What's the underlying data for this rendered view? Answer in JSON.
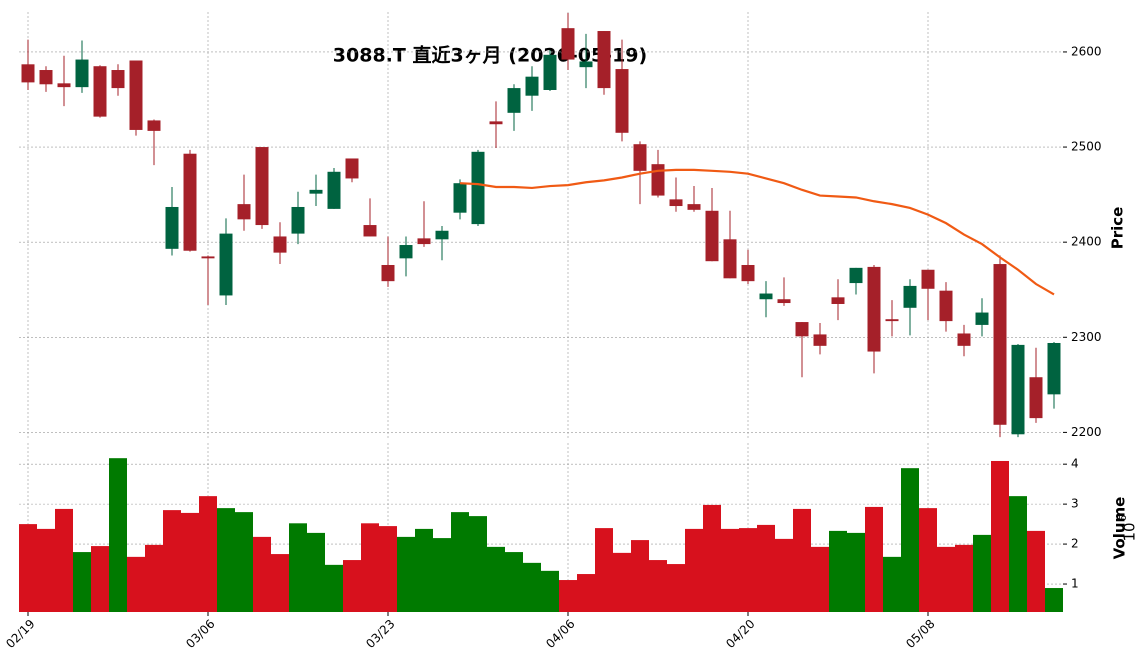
{
  "chart_data": [
    {
      "type": "candlestick",
      "title": "3088.T 直近3ヶ月 (2026-05-19)",
      "ylabel": "Price",
      "categories": [
        "02/19",
        null,
        null,
        null,
        null,
        null,
        null,
        null,
        null,
        null,
        "03/06",
        null,
        null,
        null,
        null,
        null,
        null,
        null,
        null,
        null,
        "03/23",
        null,
        null,
        null,
        null,
        null,
        null,
        null,
        null,
        null,
        "04/06",
        null,
        null,
        null,
        null,
        null,
        null,
        null,
        null,
        null,
        "04/20",
        null,
        null,
        null,
        null,
        null,
        null,
        null,
        null,
        null,
        "05/08",
        null,
        null,
        null,
        null,
        null,
        null,
        null
      ],
      "open": [
        2587,
        2581,
        2567,
        2563,
        2585,
        2581,
        2591,
        2528,
        2393,
        2493,
        2385,
        2344,
        2440,
        2500,
        2406,
        2409,
        2451,
        2435,
        2488,
        2418,
        2376,
        2383,
        2404,
        2403,
        2431,
        2419,
        2527,
        2536,
        2554,
        2560,
        2625,
        2584,
        2622,
        2582,
        2503,
        2482,
        2445,
        2440,
        2433,
        2403,
        2376,
        2340,
        2340,
        2316,
        2303,
        2342,
        2357,
        2374,
        2319,
        2331,
        2371,
        2349,
        2304,
        2313,
        2377,
        2198,
        2258,
        2240
      ],
      "high": [
        2613,
        2585,
        2596,
        2612,
        2586,
        2587,
        2591,
        2529,
        2458,
        2497,
        2386,
        2425,
        2471,
        2500,
        2421,
        2453,
        2471,
        2478,
        2488,
        2446,
        2406,
        2406,
        2443,
        2417,
        2466,
        2497,
        2548,
        2566,
        2585,
        2602,
        2641,
        2619,
        2622,
        2613,
        2506,
        2497,
        2468,
        2459,
        2457,
        2433,
        2392,
        2359,
        2363,
        2316,
        2315,
        2361,
        2373,
        2376,
        2339,
        2361,
        2371,
        2358,
        2313,
        2341,
        2386,
        2293,
        2289,
        2295
      ],
      "low": [
        2560,
        2558,
        2543,
        2557,
        2531,
        2554,
        2512,
        2481,
        2386,
        2390,
        2334,
        2334,
        2412,
        2414,
        2377,
        2398,
        2438,
        2435,
        2463,
        2406,
        2353,
        2364,
        2395,
        2381,
        2424,
        2417,
        2499,
        2517,
        2538,
        2559,
        2581,
        2562,
        2555,
        2506,
        2440,
        2447,
        2432,
        2432,
        2380,
        2362,
        2356,
        2321,
        2333,
        2258,
        2282,
        2318,
        2345,
        2262,
        2301,
        2302,
        2318,
        2306,
        2280,
        2301,
        2195,
        2195,
        2210,
        2225
      ],
      "close": [
        2568,
        2566,
        2563,
        2592,
        2532,
        2562,
        2518,
        2517,
        2437,
        2391,
        2383,
        2409,
        2424,
        2418,
        2389,
        2437,
        2455,
        2474,
        2467,
        2406,
        2359,
        2397,
        2398,
        2412,
        2462,
        2495,
        2524,
        2562,
        2574,
        2597,
        2592,
        2590,
        2562,
        2515,
        2475,
        2449,
        2438,
        2434,
        2380,
        2362,
        2359,
        2346,
        2336,
        2301,
        2291,
        2335,
        2373,
        2285,
        2317,
        2354,
        2351,
        2317,
        2291,
        2326,
        2208,
        2292,
        2215,
        2294
      ],
      "up_color": "#006340",
      "down_color": "#a52029",
      "overlay": {
        "type": "line",
        "color": "#f05a14",
        "values": [
          null,
          null,
          null,
          null,
          null,
          null,
          null,
          null,
          null,
          null,
          null,
          null,
          null,
          null,
          null,
          null,
          null,
          null,
          null,
          null,
          null,
          null,
          null,
          null,
          2462,
          2461,
          2458,
          2458,
          2457,
          2459,
          2460,
          2463,
          2465,
          2468,
          2472,
          2475,
          2476,
          2476,
          2475,
          2474,
          2472,
          2467,
          2462,
          2455,
          2449,
          2448,
          2447,
          2443,
          2440,
          2436,
          2429,
          2420,
          2408,
          2398,
          2384,
          2371,
          2356,
          2345
        ]
      },
      "ylim": [
        2192,
        2642
      ],
      "yticks": [
        2200,
        2300,
        2400,
        2500,
        2600
      ],
      "grid": true
    },
    {
      "type": "bar",
      "ylabel": "Volume",
      "offset_base": "10",
      "offset_exponent": "6",
      "values": [
        2.5,
        2.38,
        2.88,
        1.8,
        1.95,
        4.15,
        1.68,
        1.98,
        2.85,
        2.78,
        3.2,
        2.9,
        2.8,
        2.18,
        1.75,
        2.52,
        2.28,
        1.48,
        1.6,
        2.52,
        2.45,
        2.18,
        2.38,
        2.15,
        2.8,
        2.7,
        1.93,
        1.8,
        1.53,
        1.33,
        1.1,
        1.25,
        2.4,
        1.78,
        2.1,
        1.6,
        1.5,
        2.38,
        2.98,
        2.38,
        2.4,
        2.48,
        2.13,
        2.88,
        1.93,
        2.33,
        2.28,
        2.93,
        1.68,
        3.9,
        2.9,
        1.93,
        1.98,
        2.23,
        4.08,
        3.2,
        2.33,
        0.9
      ],
      "up_color": "#007a00",
      "down_color": "#d7111d",
      "ylim": [
        0.3,
        4.53
      ],
      "yticks": [
        1,
        2,
        3,
        4
      ],
      "grid": true
    }
  ]
}
